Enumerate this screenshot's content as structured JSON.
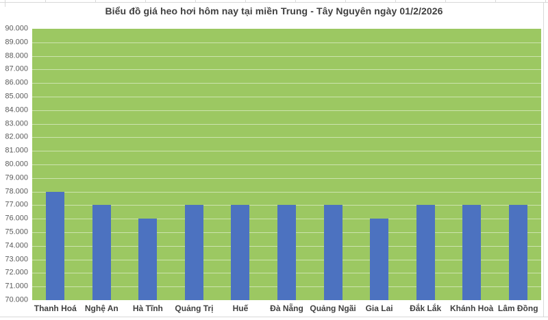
{
  "chart_data": {
    "type": "bar",
    "title": "Biểu đồ giá heo hơi hôm nay tại miền Trung - Tây Nguyên ngày 01/2/2026",
    "categories": [
      "Thanh Hoá",
      "Nghệ An",
      "Hà Tĩnh",
      "Quảng Trị",
      "Huế",
      "Đà Nẵng",
      "Quảng Ngãi",
      "Gia Lai",
      "Đắk Lắk",
      "Khánh Hoà",
      "Lâm Đồng"
    ],
    "values": [
      78000,
      77000,
      76000,
      77000,
      77000,
      77000,
      77000,
      76000,
      77000,
      77000,
      77000
    ],
    "xlabel": "",
    "ylabel": "",
    "ylim": [
      70000,
      90000
    ],
    "ytick_step": 1000,
    "ytick_labels": [
      "90.000",
      "89.000",
      "88.000",
      "87.000",
      "86.000",
      "85.000",
      "84.000",
      "83.000",
      "82.000",
      "81.000",
      "80.000",
      "79.000",
      "78.000",
      "77.000",
      "76.000",
      "75.000",
      "74.000",
      "73.000",
      "72.000",
      "71.000",
      "70.000"
    ],
    "grid": "horizontal",
    "legend": "none",
    "colors": {
      "plot_background": "#9cc862",
      "bar_fill": "#4c72c0",
      "gridline": "#cde4af",
      "title_text": "#3f3f3f",
      "axis_tick_text": "#595959",
      "category_text": "#3f3f3f",
      "frame_line": "#d8d8d8"
    }
  }
}
